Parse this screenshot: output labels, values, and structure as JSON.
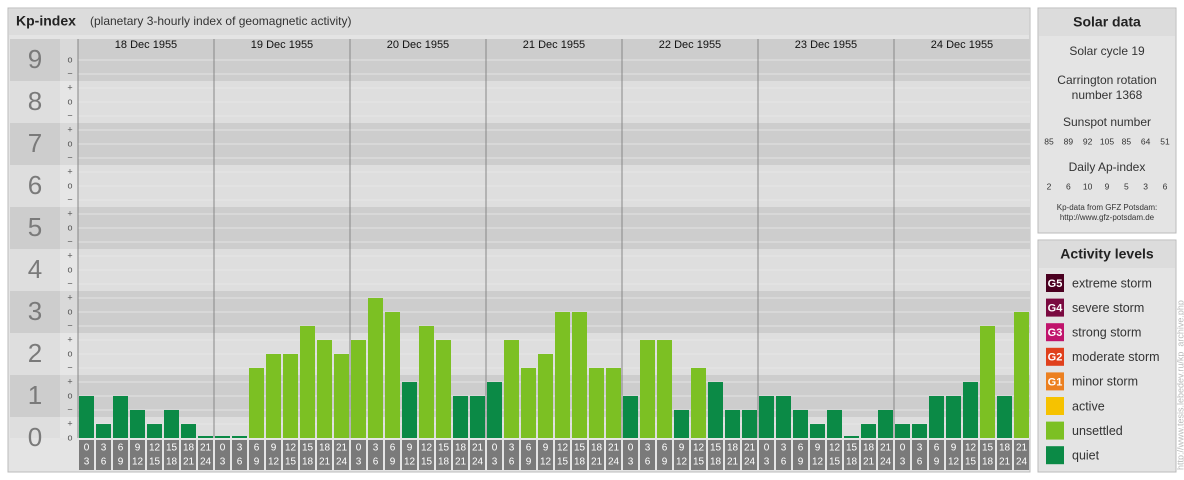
{
  "header": {
    "title": "Kp-index",
    "subtitle": "(planetary 3-hourly index of geomagnetic activity)"
  },
  "chart_data": {
    "type": "bar",
    "days": [
      "18 Dec 1955",
      "19 Dec 1955",
      "20 Dec 1955",
      "21 Dec 1955",
      "22 Dec 1955",
      "23 Dec 1955",
      "24 Dec 1955"
    ],
    "hours": [
      [
        0,
        3
      ],
      [
        3,
        6
      ],
      [
        6,
        9
      ],
      [
        9,
        12
      ],
      [
        12,
        15
      ],
      [
        15,
        18
      ],
      [
        18,
        21
      ],
      [
        21,
        24
      ]
    ],
    "values": [
      1,
      0.333,
      1,
      0.667,
      0.333,
      0.667,
      0.333,
      0,
      0,
      0,
      1.667,
      2,
      2,
      2.667,
      2.333,
      2,
      2.333,
      3.333,
      3,
      1.333,
      2.667,
      2.333,
      1,
      1,
      1.333,
      2.333,
      1.667,
      2,
      3,
      3,
      1.667,
      1.667,
      1,
      2.333,
      2.333,
      0.667,
      1.667,
      1.333,
      0.667,
      0.667,
      1,
      1,
      0.667,
      0.333,
      0.667,
      0,
      0.333,
      0.667,
      0.333,
      0.333,
      1,
      1,
      1.333,
      2.667,
      1,
      3
    ],
    "colors": [
      "#0b8a46",
      "#0b8a46",
      "#0b8a46",
      "#0b8a46",
      "#0b8a46",
      "#0b8a46",
      "#0b8a46",
      "#0b8a46",
      "#0b8a46",
      "#0b8a46",
      "#7cc023",
      "#7cc023",
      "#7cc023",
      "#7cc023",
      "#7cc023",
      "#7cc023",
      "#7cc023",
      "#7cc023",
      "#7cc023",
      "#0b8a46",
      "#7cc023",
      "#7cc023",
      "#0b8a46",
      "#0b8a46",
      "#0b8a46",
      "#7cc023",
      "#7cc023",
      "#7cc023",
      "#7cc023",
      "#7cc023",
      "#7cc023",
      "#7cc023",
      "#0b8a46",
      "#7cc023",
      "#7cc023",
      "#0b8a46",
      "#7cc023",
      "#0b8a46",
      "#0b8a46",
      "#0b8a46",
      "#0b8a46",
      "#0b8a46",
      "#0b8a46",
      "#0b8a46",
      "#0b8a46",
      "#0b8a46",
      "#0b8a46",
      "#0b8a46",
      "#0b8a46",
      "#0b8a46",
      "#0b8a46",
      "#0b8a46",
      "#0b8a46",
      "#7cc023",
      "#0b8a46",
      "#7cc023"
    ],
    "ylim": [
      0,
      9.5
    ],
    "yticks": [
      0,
      1,
      2,
      3,
      4,
      5,
      6,
      7,
      8,
      9
    ],
    "minor_ticks": [
      {
        "value": 9,
        "label": "o"
      },
      {
        "value": 8.667,
        "label": "−"
      },
      {
        "value": 8.333,
        "label": "+"
      },
      {
        "value": 8,
        "label": "o"
      },
      {
        "value": 7.667,
        "label": "−"
      },
      {
        "value": 7.333,
        "label": "+"
      },
      {
        "value": 7,
        "label": "o"
      },
      {
        "value": 6.667,
        "label": "−"
      },
      {
        "value": 6.333,
        "label": "+"
      },
      {
        "value": 6,
        "label": "o"
      },
      {
        "value": 5.667,
        "label": "−"
      },
      {
        "value": 5.333,
        "label": "+"
      },
      {
        "value": 5,
        "label": "o"
      },
      {
        "value": 4.667,
        "label": "−"
      },
      {
        "value": 4.333,
        "label": "+"
      },
      {
        "value": 4,
        "label": "o"
      },
      {
        "value": 3.667,
        "label": "−"
      },
      {
        "value": 3.333,
        "label": "+"
      },
      {
        "value": 3,
        "label": "o"
      },
      {
        "value": 2.667,
        "label": "−"
      },
      {
        "value": 2.333,
        "label": "+"
      },
      {
        "value": 2,
        "label": "o"
      },
      {
        "value": 1.667,
        "label": "−"
      },
      {
        "value": 1.333,
        "label": "+"
      },
      {
        "value": 1,
        "label": "o"
      },
      {
        "value": 0.667,
        "label": "−"
      },
      {
        "value": 0.333,
        "label": "+"
      },
      {
        "value": 0,
        "label": "o"
      }
    ]
  },
  "solar_data": {
    "title": "Solar data",
    "cycle": "Solar cycle 19",
    "carrington": [
      "Carrington rotation",
      "number 1368"
    ],
    "sunspot_title": "Sunspot number",
    "sunspot": [
      85,
      89,
      92,
      105,
      85,
      64,
      51
    ],
    "ap_title": "Daily Ap-index",
    "ap": [
      2,
      6,
      10,
      9,
      5,
      3,
      6
    ],
    "source": [
      "Kp-data from GFZ Potsdam:",
      "http://www.gfz-potsdam.de"
    ]
  },
  "activity_levels": {
    "title": "Activity levels",
    "items": [
      {
        "badge": "G5",
        "label": "extreme storm",
        "color": "#4a0020"
      },
      {
        "badge": "G4",
        "label": "severe storm",
        "color": "#7a0a40"
      },
      {
        "badge": "G3",
        "label": "strong storm",
        "color": "#c0146c"
      },
      {
        "badge": "G2",
        "label": "moderate storm",
        "color": "#e0401c"
      },
      {
        "badge": "G1",
        "label": "minor storm",
        "color": "#ec8020"
      },
      {
        "label": "active",
        "color": "#f6c200"
      },
      {
        "label": "unsettled",
        "color": "#7cc023"
      },
      {
        "label": "quiet",
        "color": "#0b8a46"
      }
    ]
  },
  "side_url": "http://www.tesis.lebedev.ru/kp_archive.php"
}
